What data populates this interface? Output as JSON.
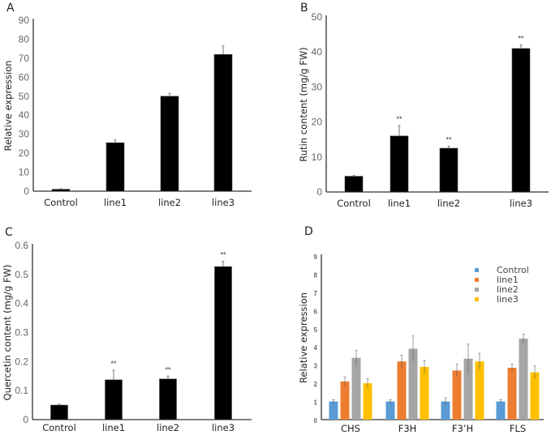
{
  "chart_data": [
    {
      "panel": "A",
      "type": "bar",
      "title": "",
      "xlabel": "",
      "ylabel": "Relative expression",
      "ylim": [
        0,
        90
      ],
      "yticks": [
        0,
        10,
        20,
        30,
        40,
        50,
        60,
        70,
        80,
        90
      ],
      "categories": [
        "Control",
        "line1",
        "line2",
        "line3"
      ],
      "values": [
        1,
        25.5,
        50,
        72
      ],
      "errors": [
        0.3,
        1.5,
        1.5,
        4.5
      ],
      "significance": [
        "",
        "",
        "",
        ""
      ],
      "color": "#000000",
      "grid": false
    },
    {
      "panel": "B",
      "type": "bar",
      "title": "",
      "xlabel": "",
      "ylabel": "Rutin content (mg/g FW)",
      "ylim": [
        0,
        50
      ],
      "yticks": [
        0,
        10,
        20,
        30,
        40,
        50
      ],
      "categories": [
        "Control",
        "line1",
        "line2",
        "line3"
      ],
      "values": [
        4.5,
        16,
        12.5,
        41
      ],
      "errors": [
        0.2,
        3,
        0.6,
        1
      ],
      "significance": [
        "",
        "**",
        "**",
        "**"
      ],
      "color": "#000000",
      "grid": false
    },
    {
      "panel": "C",
      "type": "bar",
      "title": "",
      "xlabel": "",
      "ylabel": "Quercetin content (mg/g FW)",
      "ylim": [
        0,
        0.6
      ],
      "yticks": [
        0,
        0.1,
        0.2,
        0.3,
        0.4,
        0.5,
        0.6
      ],
      "categories": [
        "Control",
        "line1",
        "line2",
        "line3"
      ],
      "values": [
        0.05,
        0.137,
        0.14,
        0.527
      ],
      "errors": [
        0.003,
        0.033,
        0.01,
        0.018
      ],
      "significance": [
        "",
        "**",
        "**",
        "**"
      ],
      "color": "#000000",
      "grid": false
    },
    {
      "panel": "D",
      "type": "bar",
      "title": "",
      "xlabel": "",
      "ylabel": "Relative expression",
      "ylim": [
        0,
        9
      ],
      "yticks": [
        0,
        1,
        2,
        3,
        4,
        5,
        6,
        7,
        8,
        9
      ],
      "categories": [
        "CHS",
        "F3H",
        "F3’H",
        "FLS"
      ],
      "series": [
        {
          "name": "Control",
          "color": "#5B9BD5",
          "values": [
            1,
            1,
            1,
            1
          ],
          "errors": [
            0.1,
            0.1,
            0.2,
            0.1
          ]
        },
        {
          "name": "line1",
          "color": "#ED7D31",
          "values": [
            2.1,
            3.2,
            2.7,
            2.85
          ],
          "errors": [
            0.25,
            0.35,
            0.35,
            0.2
          ]
        },
        {
          "name": "line2",
          "color": "#A5A5A5",
          "values": [
            3.4,
            3.9,
            3.35,
            4.45
          ],
          "errors": [
            0.4,
            0.7,
            0.8,
            0.25
          ]
        },
        {
          "name": "line3",
          "color": "#FFC000",
          "values": [
            2.0,
            2.9,
            3.2,
            2.6
          ],
          "errors": [
            0.25,
            0.35,
            0.45,
            0.35
          ]
        }
      ],
      "legend_position": "top-right",
      "grid": false
    }
  ]
}
